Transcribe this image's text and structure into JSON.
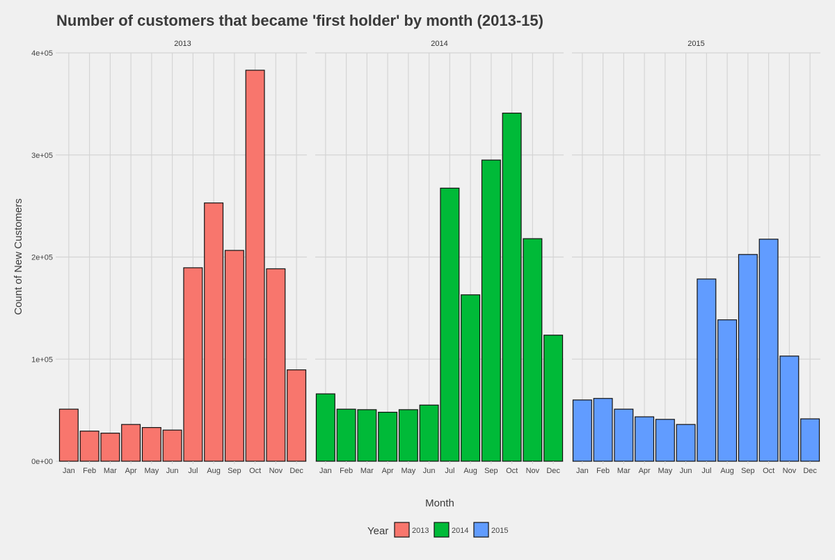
{
  "chart_data": {
    "type": "bar",
    "title": "Number of customers that became 'first holder' by month (2013-15)",
    "xlabel": "Month",
    "ylabel": "Count of New Customers",
    "ylim": [
      0,
      400000
    ],
    "y_ticks": [
      0,
      100000,
      200000,
      300000,
      400000
    ],
    "y_tick_labels": [
      "0e+00",
      "1e+05",
      "2e+05",
      "3e+05",
      "4e+05"
    ],
    "grid": true,
    "legend": {
      "title": "Year",
      "position": "bottom",
      "entries": [
        "2013",
        "2014",
        "2015"
      ]
    },
    "categories": [
      "Jan",
      "Feb",
      "Mar",
      "Apr",
      "May",
      "Jun",
      "Jul",
      "Aug",
      "Sep",
      "Oct",
      "Nov",
      "Dec"
    ],
    "colors": {
      "2013": "#F8766D",
      "2014": "#00BA38",
      "2015": "#619CFF"
    },
    "panels": [
      {
        "name": "2013",
        "values": [
          51000,
          29500,
          27500,
          36000,
          33000,
          30500,
          189500,
          253000,
          206500,
          383000,
          188500,
          89500
        ]
      },
      {
        "name": "2014",
        "values": [
          66000,
          51000,
          50500,
          48000,
          50500,
          55000,
          267500,
          163000,
          295000,
          341000,
          218000,
          123500
        ]
      },
      {
        "name": "2015",
        "values": [
          60000,
          61500,
          51000,
          43500,
          41000,
          36000,
          178500,
          138500,
          202500,
          217500,
          103000,
          41500
        ]
      }
    ]
  }
}
